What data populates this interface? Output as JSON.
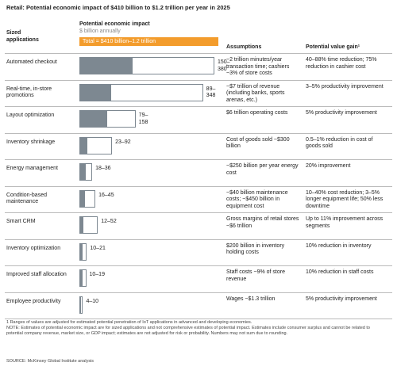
{
  "chart_data": {
    "type": "range_bar",
    "title": "Retail: Potential economic impact of $410 billion to $1.2 trillion per year in 2025",
    "headers": {
      "applications": "Sized applications",
      "impact": "Potential economic impact",
      "impact_unit": "$ billion annually",
      "total": "Total = $410 billion–1.2 trillion",
      "assumptions": "Assumptions",
      "gain": "Potential value gain¹"
    },
    "categories": [
      "Automated checkout",
      "Real-time, in-store promotions",
      "Layout optimization",
      "Inventory shrinkage",
      "Energy management",
      "Condition-based maintenance",
      "Smart CRM",
      "Inventory optimization",
      "Improved staff allocation",
      "Employee productivity"
    ],
    "low": [
      150,
      89,
      79,
      23,
      18,
      16,
      12,
      10,
      10,
      4
    ],
    "high": [
      380,
      348,
      158,
      92,
      36,
      45,
      52,
      21,
      19,
      10
    ],
    "value_labels": [
      "150–380",
      "89–348",
      "79–158",
      "23–92",
      "18–36",
      "16–45",
      "12–52",
      "10–21",
      "10–19",
      "4–10"
    ],
    "low_color": "#7d8891",
    "total_color": "#f39c2c",
    "assumptions": [
      "~2 trillion minutes/year transaction time; cashiers ~3% of store costs",
      "~$7 trillion of revenue (including banks, sports arenas, etc.)",
      "$6 trillion operating costs",
      "Cost of goods sold ~$300 billion",
      "~$250 billion per year energy cost",
      "~$40 billion maintenance costs; ~$450 billion in equipment cost",
      "Gross margins of retail stores ~$6 trillion",
      "$200 billion in inventory holding costs",
      "Staff costs ~9% of store revenue",
      "Wages ~$1.3 trillion"
    ],
    "gains": [
      "40–88% time reduction; 75% reduction in cashier cost",
      "3–5% productivity improvement",
      "5% productivity improvement",
      "0.5–1% reduction in cost of goods sold",
      "20% improvement",
      "10–40% cost reduction; 3–5% longer equipment life; 50% less downtime",
      "Up to 11% improvement across segments",
      "10% reduction in inventory",
      "10% reduction in staff costs",
      "5% productivity improvement"
    ],
    "footnotes": [
      "1 Ranges of values are adjusted for estimated potential penetration of IoT applications in advanced and developing economies.",
      "NOTE: Estimates of potential economic impact are for sized applications and not comprehensive estimates of potential impact. Estimates include consumer surplus and cannot be related to potential company revenue, market size, or GDP impact; estimates are not adjusted for risk or probability. Numbers may not sum due to rounding."
    ],
    "source": "SOURCE: McKinsey Global Institute analysis"
  }
}
